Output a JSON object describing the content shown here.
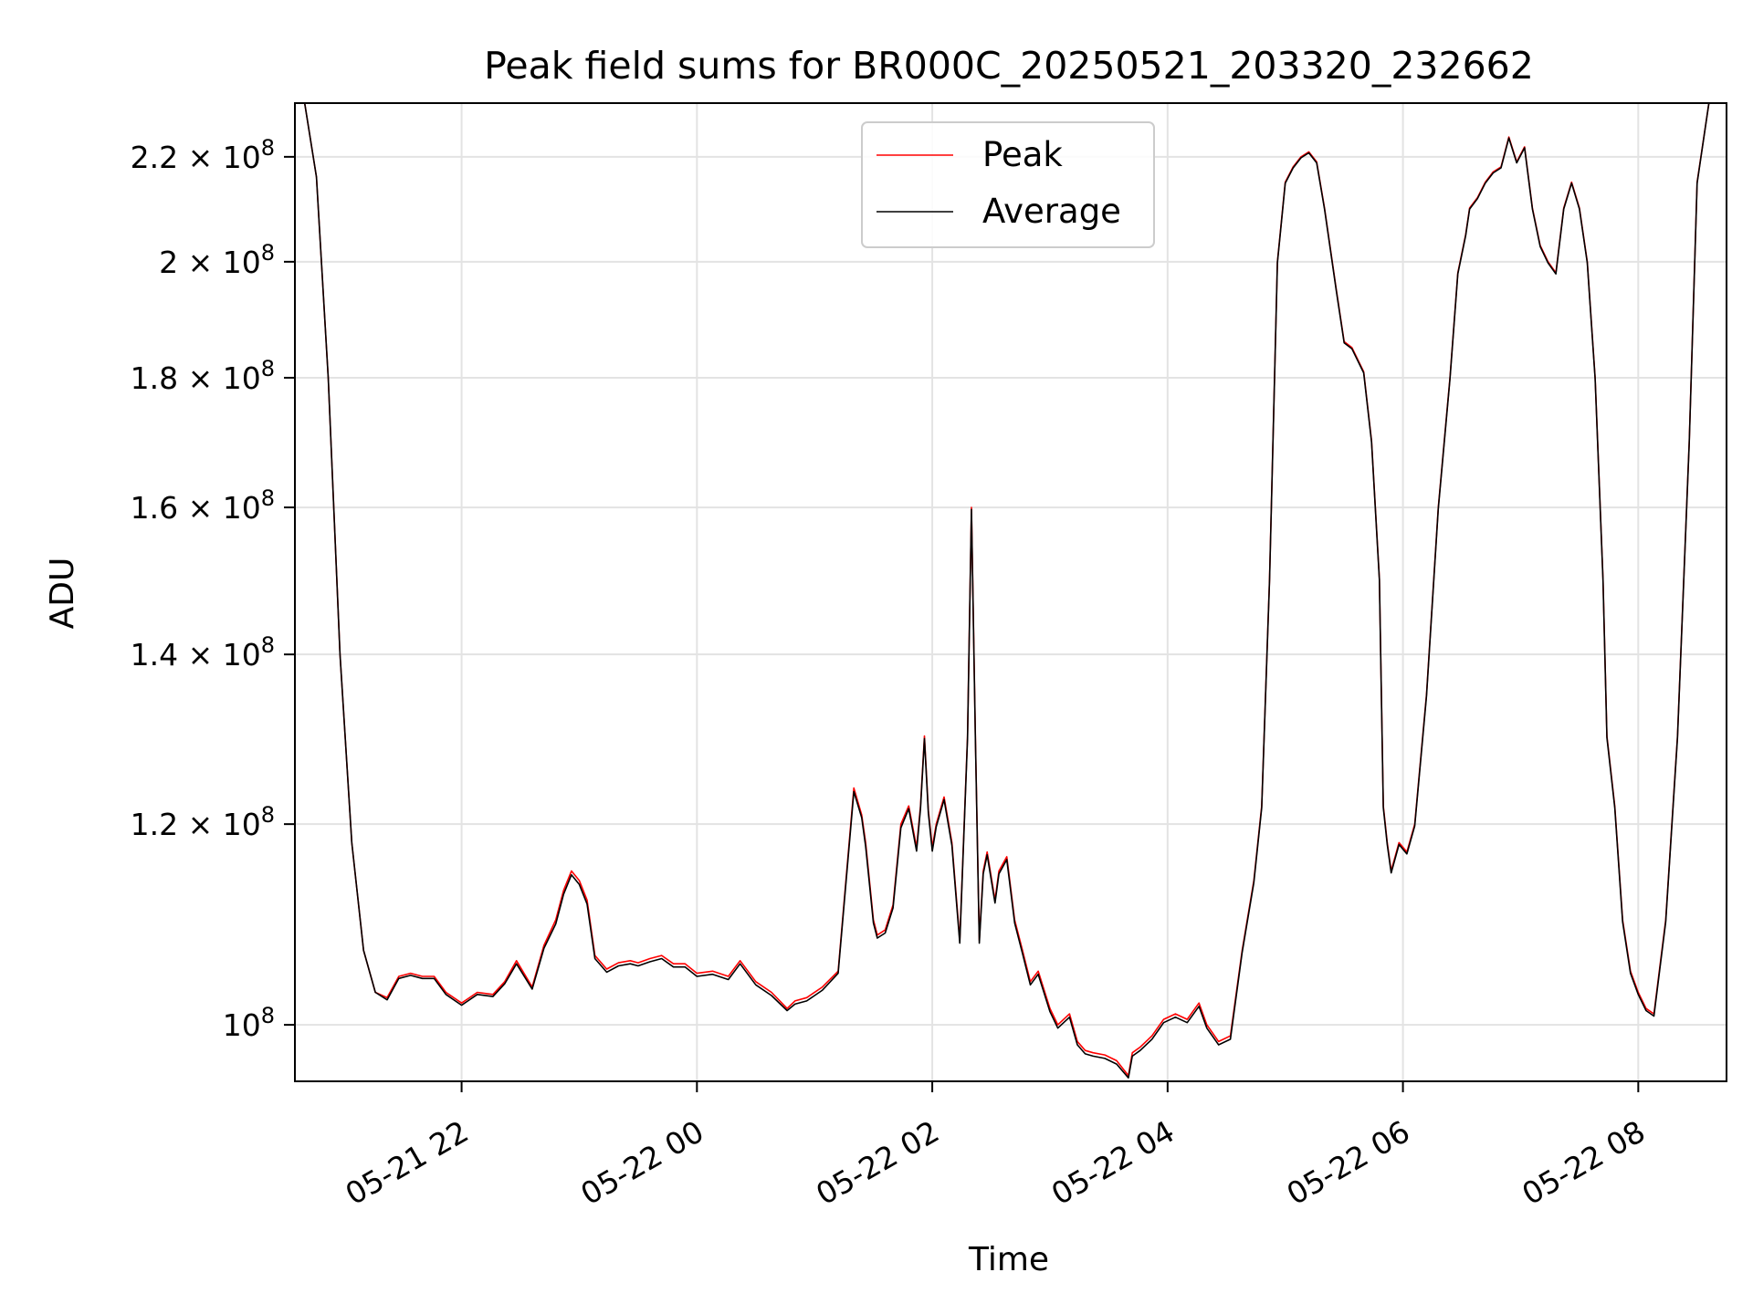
{
  "chart_data": {
    "type": "line",
    "title": "Peak field sums for BR000C_20250521_203320_232662",
    "xlabel": "Time",
    "ylabel": "ADU",
    "yscale": "log",
    "grid": true,
    "legend_position": "top-center",
    "xlim": [
      "2025-05-21 20:35",
      "2025-05-22 08:45"
    ],
    "ylim": [
      95000000,
      231000000
    ],
    "x_ticks": [
      "2025-05-21 22:00",
      "2025-05-22 00:00",
      "2025-05-22 02:00",
      "2025-05-22 04:00",
      "2025-05-22 06:00",
      "2025-05-22 08:00"
    ],
    "x_tick_labels": [
      "05-21 22",
      "05-22 00",
      "05-22 02",
      "05-22 04",
      "05-22 06",
      "05-22 08"
    ],
    "y_ticks": [
      100000000,
      120000000,
      140000000,
      160000000,
      180000000,
      200000000,
      220000000
    ],
    "y_tick_labels": [
      {
        "mant": "",
        "exp": "8"
      },
      {
        "mant": "1.2 × ",
        "exp": "8"
      },
      {
        "mant": "1.4 × ",
        "exp": "8"
      },
      {
        "mant": "1.6 × ",
        "exp": "8"
      },
      {
        "mant": "1.8 × ",
        "exp": "8"
      },
      {
        "mant": "2 × ",
        "exp": "8"
      },
      {
        "mant": "2.2 × ",
        "exp": "8"
      }
    ],
    "x": [
      "2025-05-21 20:35",
      "2025-05-21 20:40",
      "2025-05-21 20:46",
      "2025-05-21 20:52",
      "2025-05-21 20:58",
      "2025-05-21 21:04",
      "2025-05-21 21:10",
      "2025-05-21 21:16",
      "2025-05-21 21:22",
      "2025-05-21 21:28",
      "2025-05-21 21:34",
      "2025-05-21 21:40",
      "2025-05-21 21:46",
      "2025-05-21 21:52",
      "2025-05-21 22:00",
      "2025-05-21 22:08",
      "2025-05-21 22:16",
      "2025-05-21 22:22",
      "2025-05-21 22:28",
      "2025-05-21 22:36",
      "2025-05-21 22:42",
      "2025-05-21 22:48",
      "2025-05-21 22:52",
      "2025-05-21 22:56",
      "2025-05-21 23:00",
      "2025-05-21 23:04",
      "2025-05-21 23:08",
      "2025-05-21 23:14",
      "2025-05-21 23:20",
      "2025-05-21 23:26",
      "2025-05-21 23:30",
      "2025-05-21 23:36",
      "2025-05-21 23:42",
      "2025-05-21 23:48",
      "2025-05-21 23:54",
      "2025-05-22 00:00",
      "2025-05-22 00:08",
      "2025-05-22 00:16",
      "2025-05-22 00:22",
      "2025-05-22 00:30",
      "2025-05-22 00:38",
      "2025-05-22 00:46",
      "2025-05-22 00:50",
      "2025-05-22 00:56",
      "2025-05-22 01:04",
      "2025-05-22 01:12",
      "2025-05-22 01:20",
      "2025-05-22 01:24",
      "2025-05-22 01:26",
      "2025-05-22 01:30",
      "2025-05-22 01:32",
      "2025-05-22 01:36",
      "2025-05-22 01:40",
      "2025-05-22 01:44",
      "2025-05-22 01:48",
      "2025-05-22 01:52",
      "2025-05-22 01:54",
      "2025-05-22 01:56",
      "2025-05-22 01:58",
      "2025-05-22 02:00",
      "2025-05-22 02:02",
      "2025-05-22 02:06",
      "2025-05-22 02:10",
      "2025-05-22 02:14",
      "2025-05-22 02:18",
      "2025-05-22 02:20",
      "2025-05-22 02:22",
      "2025-05-22 02:24",
      "2025-05-22 02:26",
      "2025-05-22 02:28",
      "2025-05-22 02:32",
      "2025-05-22 02:34",
      "2025-05-22 02:38",
      "2025-05-22 02:42",
      "2025-05-22 02:46",
      "2025-05-22 02:50",
      "2025-05-22 02:54",
      "2025-05-22 03:00",
      "2025-05-22 03:04",
      "2025-05-22 03:10",
      "2025-05-22 03:14",
      "2025-05-22 03:18",
      "2025-05-22 03:22",
      "2025-05-22 03:28",
      "2025-05-22 03:34",
      "2025-05-22 03:40",
      "2025-05-22 03:42",
      "2025-05-22 03:46",
      "2025-05-22 03:52",
      "2025-05-22 03:58",
      "2025-05-22 04:04",
      "2025-05-22 04:10",
      "2025-05-22 04:16",
      "2025-05-22 04:20",
      "2025-05-22 04:26",
      "2025-05-22 04:32",
      "2025-05-22 04:38",
      "2025-05-22 04:44",
      "2025-05-22 04:48",
      "2025-05-22 04:52",
      "2025-05-22 04:56",
      "2025-05-22 05:00",
      "2025-05-22 05:04",
      "2025-05-22 05:08",
      "2025-05-22 05:12",
      "2025-05-22 05:16",
      "2025-05-22 05:20",
      "2025-05-22 05:26",
      "2025-05-22 05:30",
      "2025-05-22 05:34",
      "2025-05-22 05:40",
      "2025-05-22 05:44",
      "2025-05-22 05:48",
      "2025-05-22 05:50",
      "2025-05-22 05:52",
      "2025-05-22 05:54",
      "2025-05-22 05:58",
      "2025-05-22 06:02",
      "2025-05-22 06:06",
      "2025-05-22 06:12",
      "2025-05-22 06:18",
      "2025-05-22 06:24",
      "2025-05-22 06:28",
      "2025-05-22 06:32",
      "2025-05-22 06:34",
      "2025-05-22 06:38",
      "2025-05-22 06:42",
      "2025-05-22 06:46",
      "2025-05-22 06:50",
      "2025-05-22 06:54",
      "2025-05-22 06:58",
      "2025-05-22 07:02",
      "2025-05-22 07:06",
      "2025-05-22 07:10",
      "2025-05-22 07:14",
      "2025-05-22 07:18",
      "2025-05-22 07:22",
      "2025-05-22 07:26",
      "2025-05-22 07:30",
      "2025-05-22 07:34",
      "2025-05-22 07:38",
      "2025-05-22 07:42",
      "2025-05-22 07:44",
      "2025-05-22 07:48",
      "2025-05-22 07:52",
      "2025-05-22 07:56",
      "2025-05-22 08:00",
      "2025-05-22 08:04",
      "2025-05-22 08:08",
      "2025-05-22 08:14",
      "2025-05-22 08:20",
      "2025-05-22 08:26",
      "2025-05-22 08:30",
      "2025-05-22 08:36",
      "2025-05-22 08:45"
    ],
    "series": [
      {
        "name": "Peak",
        "color": "#ff0000",
        "values": [
          231000000,
          231000000,
          216000000,
          180000000,
          140000000,
          118000000,
          107000000,
          103000000,
          102500000,
          104500000,
          104800000,
          104500000,
          104500000,
          103000000,
          102000000,
          103000000,
          102800000,
          104000000,
          106000000,
          103500000,
          107500000,
          110000000,
          113000000,
          115000000,
          114000000,
          112000000,
          106500000,
          105200000,
          105800000,
          106000000,
          105800000,
          106200000,
          106500000,
          105700000,
          105700000,
          104800000,
          105000000,
          104500000,
          106000000,
          104000000,
          103000000,
          101500000,
          102200000,
          102500000,
          103500000,
          105000000,
          124000000,
          121000000,
          118000000,
          110000000,
          108500000,
          109000000,
          111500000,
          120000000,
          122000000,
          117500000,
          122000000,
          130000000,
          121500000,
          117500000,
          120000000,
          123000000,
          118000000,
          108000000,
          130000000,
          160000000,
          130000000,
          108000000,
          115000000,
          117000000,
          112000000,
          115000000,
          116500000,
          110000000,
          107000000,
          104000000,
          105000000,
          101500000,
          100000000,
          101000000,
          98500000,
          97700000,
          97500000,
          97300000,
          96800000,
          95500000,
          97500000,
          98000000,
          99000000,
          100500000,
          101000000,
          100500000,
          102000000,
          100000000,
          98500000,
          99000000,
          107000000,
          114000000,
          122000000,
          150000000,
          200000000,
          215000000,
          218000000,
          220000000,
          221000000,
          219000000,
          210000000,
          195000000,
          186000000,
          185000000,
          181000000,
          170000000,
          150000000,
          122000000,
          118000000,
          115000000,
          118000000,
          117000000,
          120000000,
          135000000,
          160000000,
          180000000,
          198000000,
          205000000,
          210000000,
          212000000,
          215000000,
          217000000,
          218000000,
          224000000,
          219000000,
          222000000,
          210000000,
          203000000,
          200000000,
          198000000,
          210000000,
          215000000,
          210000000,
          200000000,
          180000000,
          150000000,
          130000000,
          122000000,
          110000000,
          105000000,
          103000000,
          101500000,
          101000000,
          110000000,
          130000000,
          170000000,
          215000000,
          231000000,
          231000000
        ]
      },
      {
        "name": "Average",
        "color": "#000000",
        "values": [
          231000000,
          231000000,
          216000000,
          180000000,
          140000000,
          118000000,
          107000000,
          103000000,
          102300000,
          104300000,
          104600000,
          104300000,
          104300000,
          102800000,
          101800000,
          102800000,
          102600000,
          103800000,
          105700000,
          103300000,
          107200000,
          109600000,
          112600000,
          114600000,
          113600000,
          111600000,
          106200000,
          104900000,
          105500000,
          105700000,
          105500000,
          105900000,
          106200000,
          105400000,
          105400000,
          104500000,
          104700000,
          104200000,
          105700000,
          103700000,
          102700000,
          101300000,
          101900000,
          102200000,
          103200000,
          104800000,
          123600000,
          120700000,
          117600000,
          109700000,
          108200000,
          108700000,
          111200000,
          119600000,
          121700000,
          117100000,
          121700000,
          129700000,
          121200000,
          117100000,
          119700000,
          122700000,
          117700000,
          107700000,
          129700000,
          159700000,
          129700000,
          107700000,
          114700000,
          116700000,
          111700000,
          114700000,
          116200000,
          109700000,
          106700000,
          103700000,
          104700000,
          101200000,
          99700000,
          100700000,
          98200000,
          97400000,
          97200000,
          97000000,
          96500000,
          95300000,
          97200000,
          97700000,
          98700000,
          100200000,
          100700000,
          100200000,
          101700000,
          99700000,
          98200000,
          98700000,
          106800000,
          113800000,
          121800000,
          149800000,
          199800000,
          214800000,
          217800000,
          219800000,
          220800000,
          218800000,
          209800000,
          194800000,
          185800000,
          184800000,
          180800000,
          169800000,
          149800000,
          121800000,
          117800000,
          114800000,
          117800000,
          116800000,
          119800000,
          134800000,
          159800000,
          179800000,
          197800000,
          204800000,
          209800000,
          211800000,
          214800000,
          216800000,
          217800000,
          223800000,
          218800000,
          221800000,
          209800000,
          202800000,
          199800000,
          197800000,
          209800000,
          214800000,
          209800000,
          199800000,
          179800000,
          149800000,
          129800000,
          121800000,
          109800000,
          104800000,
          102800000,
          101300000,
          100800000,
          109800000,
          129800000,
          169800000,
          214800000,
          231000000,
          231000000
        ]
      }
    ]
  }
}
